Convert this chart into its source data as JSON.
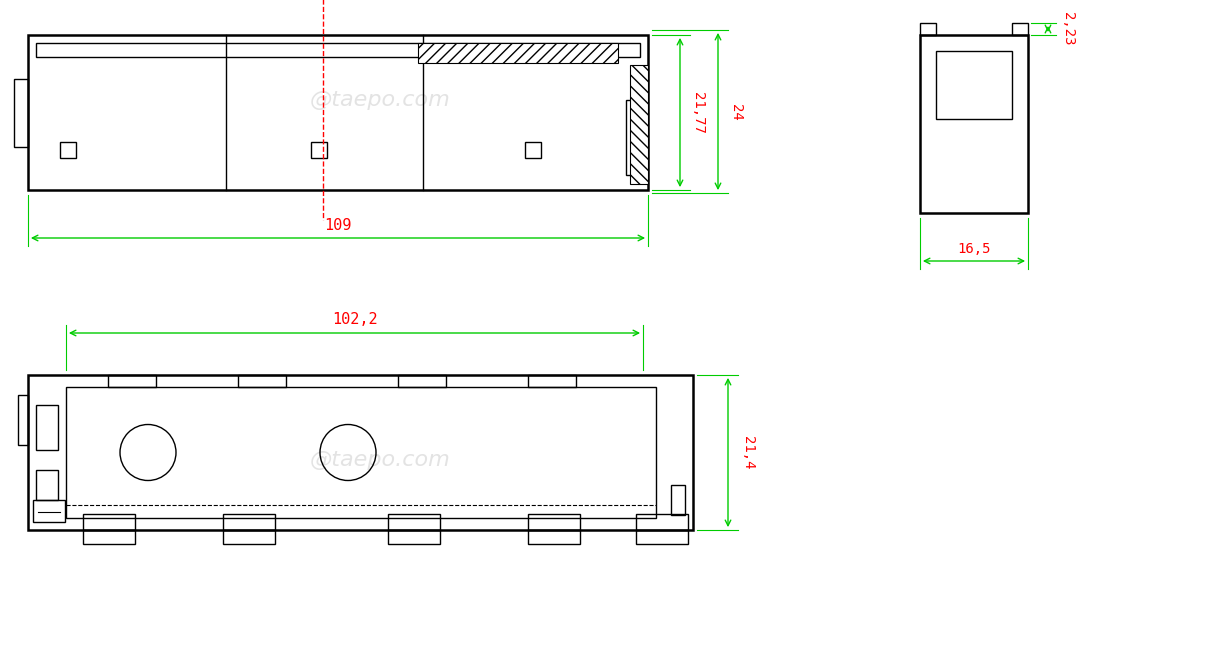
{
  "bg_color": "#ffffff",
  "line_color": "#000000",
  "dim_color": "#00cc00",
  "text_color": "#ff0000",
  "watermark_color": "#c8c8c8",
  "watermark_text": "@taepo.com",
  "fig_w": 12.22,
  "fig_h": 6.54,
  "dpi": 100
}
